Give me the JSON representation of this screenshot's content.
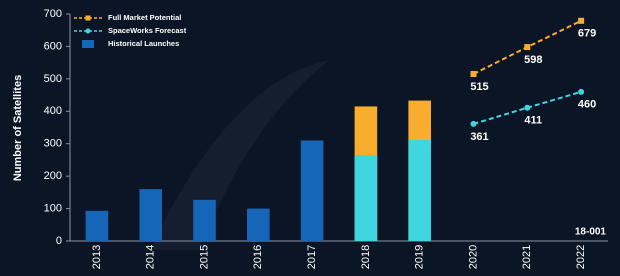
{
  "chart_data": {
    "type": "bar",
    "y_label": "Number of Satellites",
    "categories": [
      "2013",
      "2014",
      "2015",
      "2016",
      "2017",
      "2018",
      "2019",
      "2020",
      "2021",
      "2022"
    ],
    "series": [
      {
        "name": "Full Market Potential",
        "color": "#f8ad2e",
        "values": [
          null,
          null,
          null,
          null,
          null,
          415,
          433,
          null,
          null,
          null
        ],
        "line_values": [
          null,
          null,
          null,
          null,
          null,
          null,
          null,
          515,
          598,
          679
        ],
        "marker": "square"
      },
      {
        "name": "SpaceWorks Forecast",
        "color": "#3fd6e0",
        "values": [
          null,
          null,
          null,
          null,
          null,
          265,
          312,
          null,
          null,
          null
        ],
        "line_values": [
          null,
          null,
          null,
          null,
          null,
          null,
          null,
          361,
          411,
          460
        ],
        "marker": "circle"
      },
      {
        "name": "Historical Launches",
        "color": "#1565b8",
        "values": [
          93,
          160,
          127,
          100,
          310,
          null,
          null,
          null,
          null,
          null
        ]
      }
    ],
    "ylim": [
      0,
      700
    ],
    "yticks": [
      0,
      100,
      200,
      300,
      400,
      500,
      600,
      700
    ],
    "grid": false,
    "note": "18-001"
  }
}
